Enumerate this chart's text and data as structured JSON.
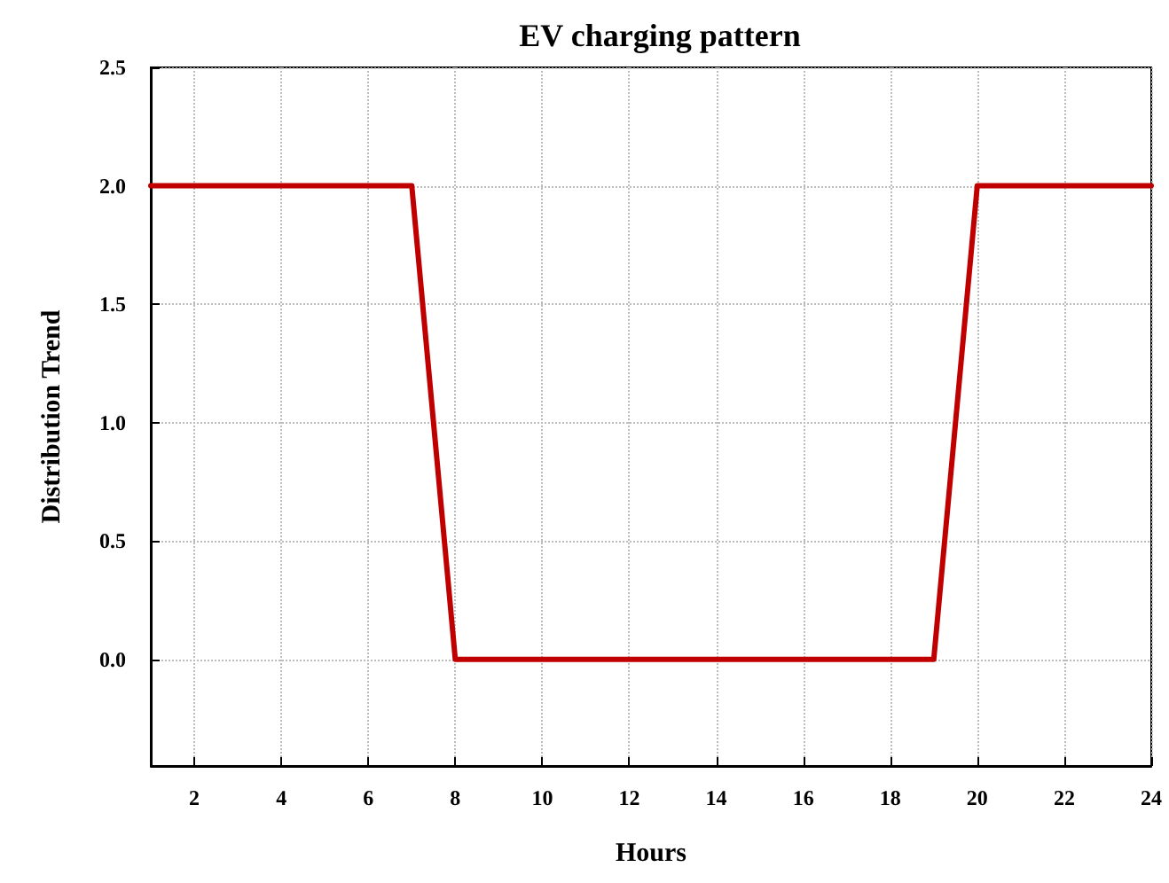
{
  "chart_data": {
    "type": "line",
    "title": "EV charging pattern",
    "xlabel": "Hours",
    "ylabel": "Distribution Trend",
    "x": [
      1,
      7,
      8,
      19,
      20,
      24
    ],
    "series": [
      {
        "color": "#c00000",
        "values": [
          2,
          2,
          0,
          0,
          2,
          2
        ]
      }
    ],
    "xlim": [
      1,
      24
    ],
    "xticks": [
      2,
      4,
      6,
      8,
      10,
      12,
      14,
      16,
      18,
      20,
      22,
      24
    ],
    "ylim": [
      -0.45,
      2.5
    ],
    "yticks": [
      {
        "value": 0,
        "label": "0.0"
      },
      {
        "value": 0.5,
        "label": "0.5"
      },
      {
        "value": 1,
        "label": "1.0"
      },
      {
        "value": 1.5,
        "label": "1.5"
      },
      {
        "value": 2,
        "label": "2.0"
      },
      {
        "value": 2.5,
        "label": "2.5"
      }
    ],
    "grid": true,
    "marker": "none",
    "line_style": "solid"
  }
}
